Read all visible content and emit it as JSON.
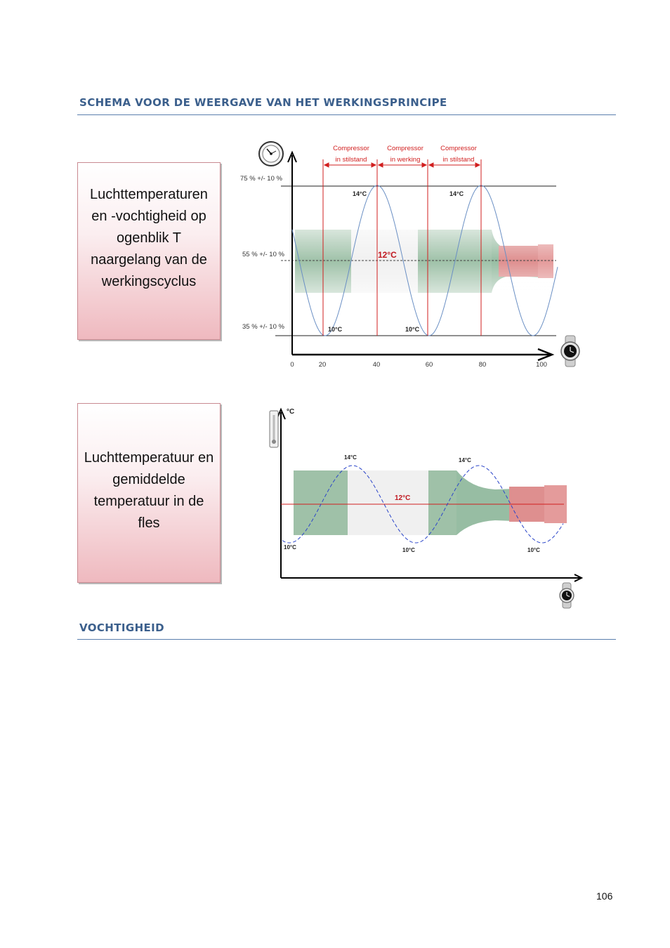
{
  "headings": {
    "schema": "SCHEMA VOOR DE WEERGAVE VAN HET WERKINGSPRINCIPE",
    "humidity": "VOCHTIGHEID"
  },
  "callouts": {
    "first": "Luchttemperaturen en -vochtigheid op ogenblik T naargelang van de werkingscyclus",
    "second": "Luchttemperatuur en gemiddelde temperatuur in de fles"
  },
  "figure1": {
    "phases": [
      {
        "line1": "Compressor",
        "line2": "in stilstand"
      },
      {
        "line1": "Compressor",
        "line2": "in werking"
      },
      {
        "line1": "Compressor",
        "line2": "in stilstand"
      }
    ],
    "humidity_levels": [
      "75 % +/- 10 %",
      "55 % +/- 10 %",
      "35 % +/- 10 %"
    ],
    "x_ticks": [
      "0",
      "20",
      "40",
      "60",
      "80",
      "100"
    ],
    "peak_labels": [
      "14°C",
      "14°C"
    ],
    "trough_labels": [
      "10°C",
      "10°C"
    ],
    "center_label": "12°C",
    "colors": {
      "curve": "#6a8fc4",
      "marker": "#d11f1f",
      "bottle_green": "#7fae8c",
      "bottle_red": "#d86a6a"
    },
    "icons": {
      "top": "hygrometer-icon",
      "axis_end": "watch-icon"
    }
  },
  "figure2": {
    "y_unit": "°C",
    "peak_labels": [
      "14°C",
      "14°C"
    ],
    "trough_labels": [
      "10°C",
      "10°C",
      "10°C"
    ],
    "center_label": "12°C",
    "colors": {
      "curve": "#2b45c9",
      "mean_line": "#d11f1f"
    },
    "icons": {
      "top": "thermometer-icon",
      "axis_end": "watch-icon"
    }
  },
  "page_number": "106"
}
